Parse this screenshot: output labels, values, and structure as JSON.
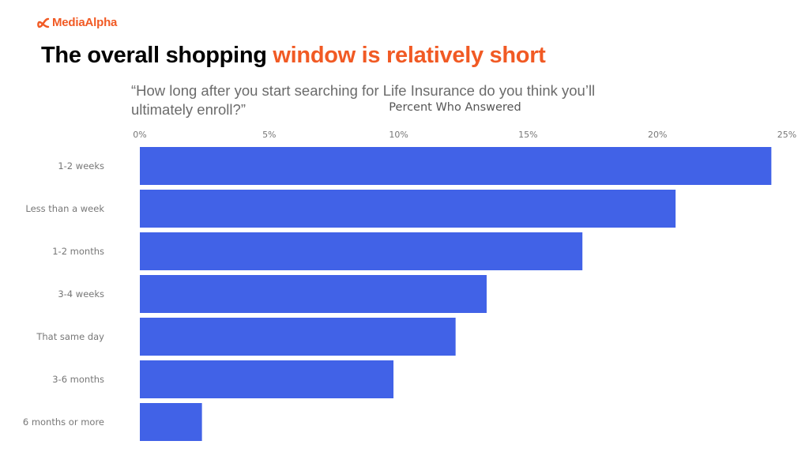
{
  "brand": {
    "name": "MediaAlpha",
    "icon": "mediaalpha-logo-icon",
    "color": "#f15a24"
  },
  "headline": {
    "plain": "The overall shopping ",
    "accent": "window is relatively short",
    "accent_color": "#f15a24"
  },
  "question": "“How long after you start searching for Life Insurance do you think you’ll ultimately enroll?”",
  "chart_data": {
    "type": "bar",
    "orientation": "horizontal",
    "title": "Percent Who Answered",
    "xlabel": "",
    "ylabel": "",
    "categories": [
      "1-2 weeks",
      "Less than a week",
      "1-2 months",
      "3-4 weeks",
      "That same day",
      "3-6 months",
      "6 months or more"
    ],
    "values": [
      24.4,
      20.7,
      17.1,
      13.4,
      12.2,
      9.8,
      2.4
    ],
    "unit": "%",
    "xlim": [
      0,
      25
    ],
    "ticks": [
      0,
      5,
      10,
      15,
      20,
      25
    ],
    "tick_labels": [
      "0%",
      "5%",
      "10%",
      "15%",
      "20%",
      "25%"
    ],
    "bar_color": "#4162e7",
    "grid": false,
    "legend": "none"
  }
}
